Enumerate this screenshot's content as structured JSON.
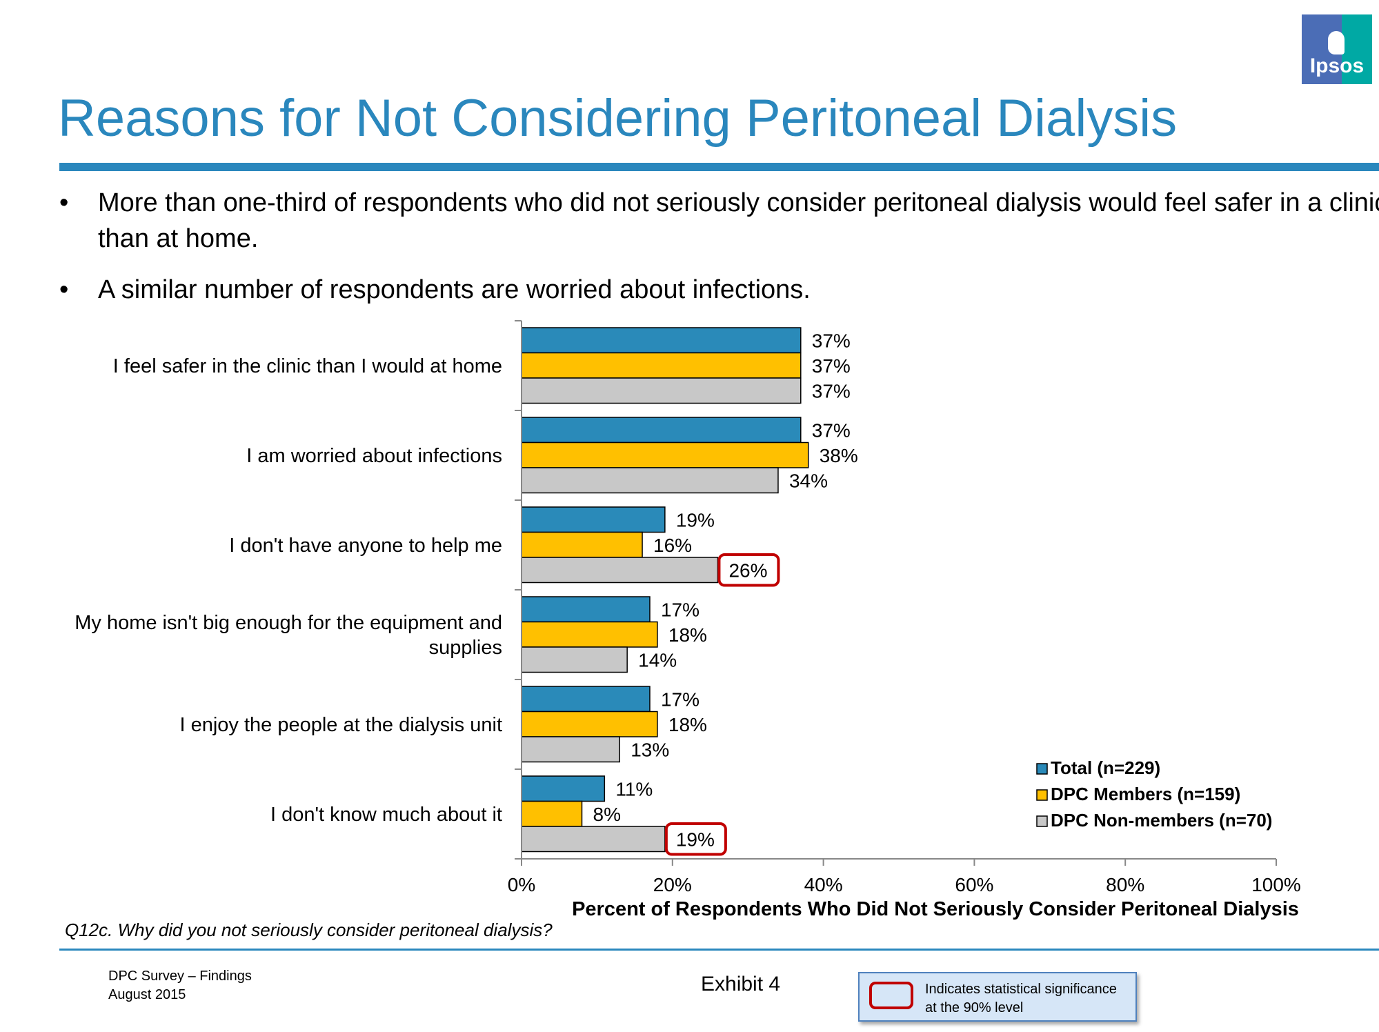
{
  "title": "Reasons for Not Considering Peritoneal Dialysis",
  "bullets": [
    {
      "symbol": "•",
      "text": "More than one-third of respondents who did not seriously consider peritoneal dialysis would feel safer in a clinic than at home."
    },
    {
      "symbol": "•",
      "text": "A similar number of respondents are worried about infections."
    }
  ],
  "logo": {
    "text": "Ipsos",
    "icon": "ipsos-head-icon"
  },
  "chart_data": {
    "type": "bar",
    "orientation": "horizontal",
    "xlabel": "Percent of Respondents Who Did Not Seriously Consider Peritoneal Dialysis",
    "xlim": [
      0,
      100
    ],
    "ticks": [
      "0%",
      "20%",
      "40%",
      "60%",
      "80%",
      "100%"
    ],
    "grid": false,
    "legend_position": "bottom-right",
    "categories": [
      [
        "I feel safer in the clinic than I would at home"
      ],
      [
        "I am worried about infections"
      ],
      [
        "I don't have anyone to help me"
      ],
      [
        "My home isn't big enough for the equipment and",
        "supplies"
      ],
      [
        "I enjoy the people at the dialysis unit"
      ],
      [
        "I don't know much about it"
      ]
    ],
    "series": [
      {
        "name": "Total (n=229)",
        "color": "#2a8ab9",
        "values": [
          37,
          37,
          19,
          17,
          17,
          11
        ]
      },
      {
        "name": "DPC Members (n=159)",
        "color": "#ffc000",
        "values": [
          37,
          38,
          16,
          18,
          18,
          8
        ]
      },
      {
        "name": "DPC Non-members (n=70)",
        "color": "#c8c8c8",
        "values": [
          37,
          34,
          26,
          14,
          13,
          19
        ]
      }
    ],
    "highlighted": [
      {
        "series": 2,
        "category": 2
      },
      {
        "series": 2,
        "category": 5
      }
    ],
    "highlight_color": "#c00000"
  },
  "question": "Q12c. Why did you not seriously consider peritoneal dialysis?",
  "footer": {
    "line1": "DPC Survey – Findings",
    "line2": "August 2015",
    "exhibit": "Exhibit 4"
  },
  "significance_note": "Indicates statistical significance at the 90% level"
}
